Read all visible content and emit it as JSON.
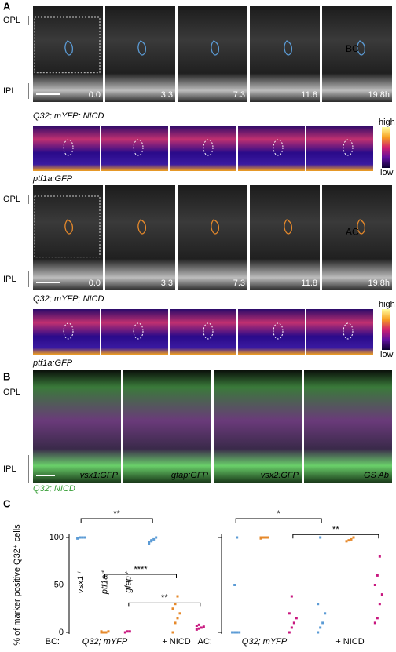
{
  "panel_a": {
    "label": "A",
    "layer_labels": [
      "OPL",
      "IPL"
    ],
    "time_labels": [
      "0.0",
      "3.3",
      "7.3",
      "11.8",
      "19.8h"
    ],
    "cell_labels": [
      "BC",
      "AC"
    ],
    "captions": [
      "Q32; mYFP; NICD",
      "ptf1a:GFP"
    ],
    "colorbar": [
      "high",
      "low"
    ]
  },
  "panel_b": {
    "label": "B",
    "layer_labels": [
      "OPL",
      "IPL"
    ],
    "stain_labels": [
      "vsx1:GFP",
      "gfap:GFP",
      "vsx2:GFP",
      "GS Ab"
    ],
    "caption": "Q32; NICD"
  },
  "panel_c": {
    "label": "C"
  },
  "chart_data": [
    {
      "type": "strip",
      "ylabel": "% of marker positive Q32⁺ cells",
      "row_label": "BC:",
      "conditions": [
        "Q32; mYFP",
        "+ NICD"
      ],
      "ylim": [
        0,
        100
      ],
      "yticks": [
        0,
        50,
        100
      ],
      "series": [
        {
          "name": "vsx1⁺",
          "color": "#5b9bd5",
          "significance": "**",
          "values": [
            [
              99,
              100,
              100,
              100,
              99,
              100
            ],
            [
              95,
              97,
              98,
              100,
              93,
              96
            ]
          ]
        },
        {
          "name": "ptf1a⁺",
          "color": "#e6892b",
          "significance": "****",
          "values": [
            [
              0,
              0,
              0,
              1,
              1
            ],
            [
              0,
              10,
              15,
              20,
              25,
              30,
              38
            ]
          ]
        },
        {
          "name": "gfap⁺",
          "color": "#c8177f",
          "significance": "**",
          "values": [
            [
              0,
              1,
              1
            ],
            [
              3,
              4,
              5,
              6,
              7,
              8
            ]
          ]
        }
      ]
    },
    {
      "type": "strip",
      "row_label": "AC:",
      "conditions": [
        "Q32; mYFP",
        "+ NICD"
      ],
      "ylim": [
        0,
        100
      ],
      "yticks": [
        0,
        50,
        100
      ],
      "series": [
        {
          "color": "#5b9bd5",
          "significance": "*",
          "values": [
            [
              0,
              0,
              0,
              0,
              0,
              50,
              100
            ],
            [
              0,
              5,
              10,
              20,
              30,
              100
            ]
          ]
        },
        {
          "color": "#e6892b",
          "values": [
            [
              100,
              100,
              100,
              100,
              99
            ],
            [
              96,
              97,
              98,
              100
            ]
          ]
        },
        {
          "color": "#c8177f",
          "significance": "**",
          "values": [
            [
              0,
              5,
              10,
              15,
              20,
              38
            ],
            [
              10,
              15,
              30,
              40,
              50,
              60,
              80
            ]
          ]
        }
      ]
    }
  ]
}
